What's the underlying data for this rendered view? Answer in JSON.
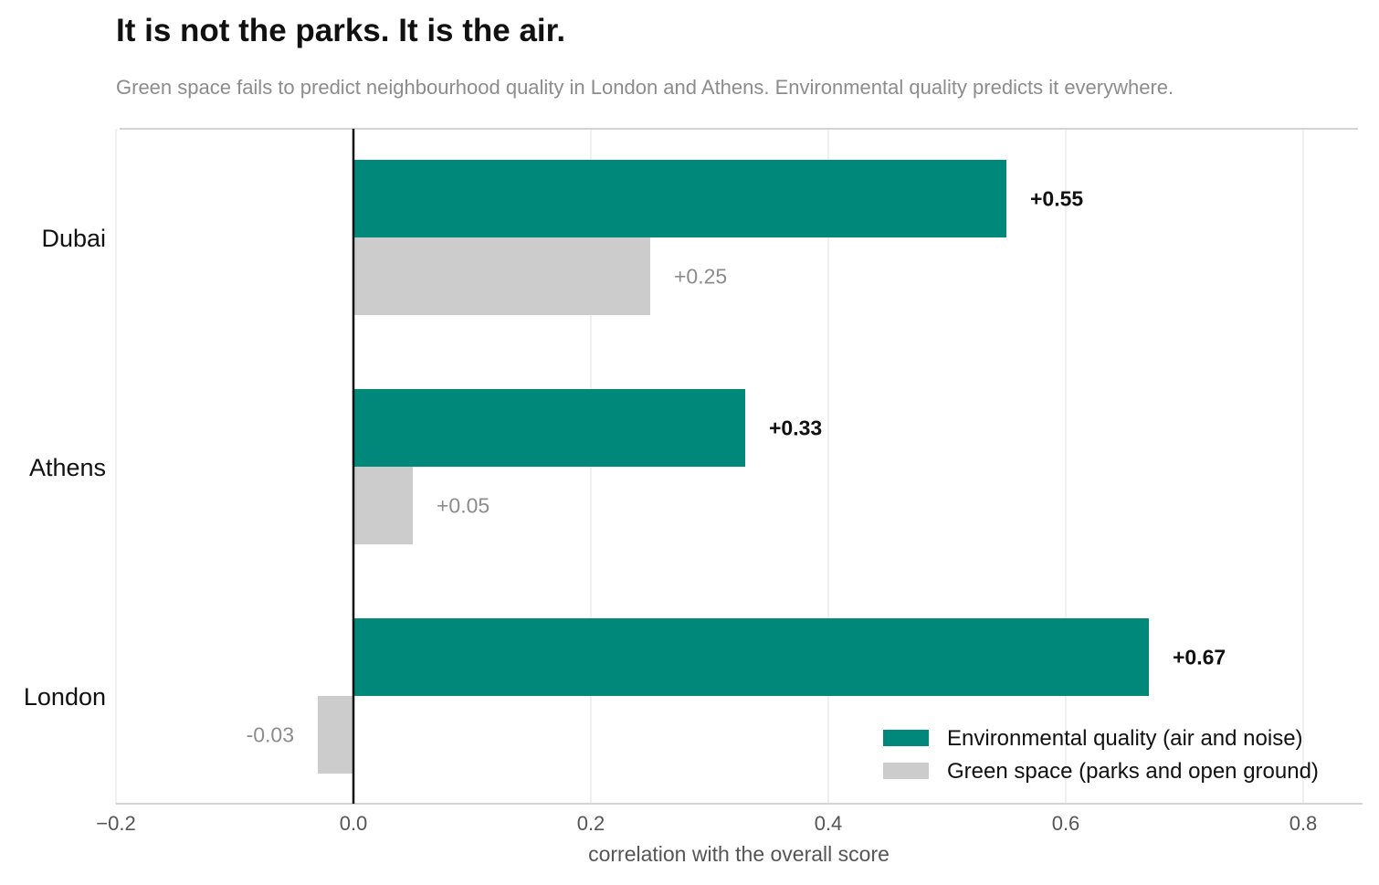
{
  "chart_data": {
    "type": "bar",
    "orientation": "horizontal",
    "title": "It is not the parks. It is the air.",
    "subtitle": "Green space fails to predict neighbourhood quality in London and Athens. Environmental quality predicts it everywhere.",
    "xlabel": "correlation with the overall score",
    "ylabel": "",
    "xlim": [
      -0.2,
      0.85
    ],
    "x_ticks": [
      -0.2,
      0.0,
      0.2,
      0.4,
      0.6,
      0.8
    ],
    "x_tick_labels": [
      "−0.2",
      "0.0",
      "0.2",
      "0.4",
      "0.6",
      "0.8"
    ],
    "categories": [
      "Dubai",
      "Athens",
      "London"
    ],
    "series": [
      {
        "name": "Environmental quality  (air and noise)",
        "color": "#00897b",
        "values": [
          0.55,
          0.33,
          0.67
        ],
        "value_labels": [
          "+0.55",
          "+0.33",
          "+0.67"
        ]
      },
      {
        "name": "Green space  (parks and open ground)",
        "color": "#cccccc",
        "values": [
          0.25,
          0.05,
          -0.03
        ],
        "value_labels": [
          "+0.25",
          "+0.05",
          "-0.03"
        ]
      }
    ],
    "grid": "vertical",
    "legend_position": "bottom-right"
  }
}
